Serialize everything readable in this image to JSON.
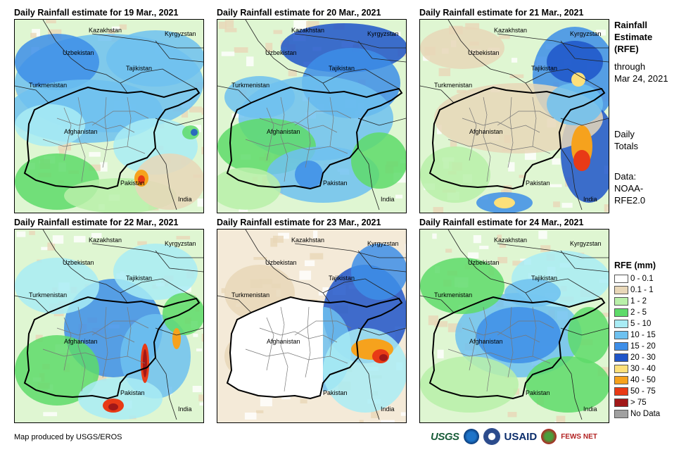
{
  "panels": [
    {
      "title": "Daily Rainfall estimate for 19 Mar., 2021",
      "variant": 0
    },
    {
      "title": "Daily Rainfall estimate for 20 Mar., 2021",
      "variant": 1
    },
    {
      "title": "Daily Rainfall estimate for 21 Mar., 2021",
      "variant": 2
    },
    {
      "title": "Daily Rainfall estimate for 22 Mar., 2021",
      "variant": 3
    },
    {
      "title": "Daily Rainfall estimate for 23 Mar., 2021",
      "variant": 4
    },
    {
      "title": "Daily Rainfall estimate for 24 Mar., 2021",
      "variant": 5
    }
  ],
  "map_labels": {
    "kazakhstan": "Kazakhstan",
    "kyrgyzstan": "Kyrgyzstan",
    "uzbekistan": "Uzbekistan",
    "tajikistan": "Tajikistan",
    "turkmenistan": "Turkmenistan",
    "afghanistan": "Afghanistan",
    "pakistan": "Pakistan",
    "india": "India"
  },
  "side": {
    "title_lines": [
      "Rainfall",
      "Estimate",
      "(RFE)"
    ],
    "through_lines": [
      "through",
      "Mar 24, 2021"
    ],
    "daily_lines": [
      "Daily",
      "Totals"
    ],
    "data_lines": [
      "Data:",
      "NOAA-",
      "RFE2.0"
    ]
  },
  "legend": {
    "title": "RFE (mm)",
    "items": [
      {
        "label": "0 - 0.1",
        "color": "#ffffff"
      },
      {
        "label": "0.1 - 1",
        "color": "#e8d7b8"
      },
      {
        "label": "1 - 2",
        "color": "#b9f0a9"
      },
      {
        "label": "2 - 5",
        "color": "#5edb6a"
      },
      {
        "label": "5 - 10",
        "color": "#a9ecf5"
      },
      {
        "label": "10 - 15",
        "color": "#6ec1f0"
      },
      {
        "label": "15 - 20",
        "color": "#3d8ee8"
      },
      {
        "label": "20 - 30",
        "color": "#1f55c9"
      },
      {
        "label": "30 - 40",
        "color": "#fde07a"
      },
      {
        "label": "40 - 50",
        "color": "#f6a21d"
      },
      {
        "label": "50 - 75",
        "color": "#e83a16"
      },
      {
        "label": "> 75",
        "color": "#a11818"
      },
      {
        "label": "No Data",
        "color": "#a0a0a0"
      }
    ]
  },
  "credit": "Map produced by USGS/EROS",
  "logos": {
    "usgs": "USGS",
    "usaid": "USAID",
    "fews": "FEWS NET"
  }
}
